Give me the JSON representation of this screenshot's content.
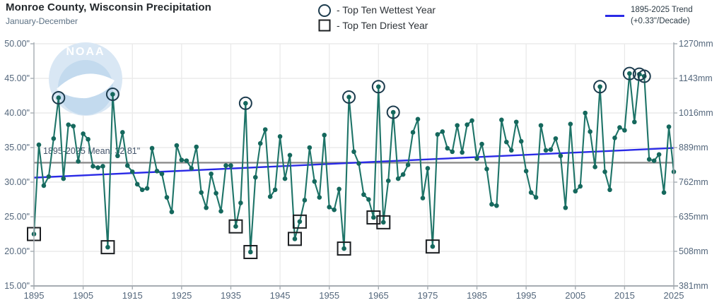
{
  "header": {
    "title": "Monroe County, Wisconsin Precipitation",
    "subtitle": "January-December"
  },
  "legend": {
    "wettest": "- Top Ten Wettest Year",
    "driest": "- Top Ten Driest Year",
    "trend_line1": "1895-2025 Trend",
    "trend_line2": "(+0.33\"/Decade)"
  },
  "watermark": {
    "logo_text": "NOAA"
  },
  "chart_data": {
    "type": "line",
    "title": "Monroe County, Wisconsin Precipitation",
    "subtitle": "January-December",
    "xlim": [
      1895,
      2025
    ],
    "ylim_inches": [
      15,
      50
    ],
    "ylim_mm": [
      381,
      1270
    ],
    "grid": true,
    "start_year": 1895,
    "series": [
      {
        "name": "precipitation",
        "values": [
          22.5,
          35.4,
          29.5,
          30.8,
          36.3,
          42.2,
          30.5,
          38.3,
          38.1,
          33.0,
          37.0,
          36.2,
          32.3,
          32.1,
          32.3,
          20.6,
          42.7,
          33.8,
          37.2,
          32.4,
          31.5,
          29.7,
          28.9,
          29.1,
          34.9,
          31.6,
          31.2,
          27.8,
          25.7,
          35.3,
          33.2,
          33.1,
          32.0,
          35.1,
          28.5,
          26.3,
          31.2,
          28.4,
          25.8,
          32.4,
          32.4,
          23.6,
          27.0,
          41.4,
          19.9,
          30.7,
          35.6,
          37.6,
          27.9,
          28.9,
          36.6,
          30.5,
          33.9,
          21.8,
          24.3,
          27.4,
          35.0,
          30.1,
          27.8,
          36.8,
          26.4,
          26.0,
          29.0,
          20.4,
          42.3,
          34.4,
          32.7,
          28.2,
          27.5,
          24.9,
          43.8,
          24.2,
          30.2,
          40.1,
          30.5,
          31.1,
          32.5,
          37.2,
          39.1,
          27.7,
          32.0,
          20.7,
          36.9,
          37.3,
          34.9,
          34.4,
          38.2,
          34.3,
          38.3,
          38.9,
          33.4,
          35.5,
          31.9,
          26.8,
          26.6,
          39.0,
          35.8,
          34.6,
          38.7,
          35.9,
          31.6,
          28.5,
          27.8,
          38.2,
          34.6,
          34.7,
          36.3,
          33.8,
          26.3,
          38.4,
          28.7,
          29.4,
          40.0,
          37.3,
          32.2,
          43.8,
          31.5,
          28.9,
          36.4,
          37.9,
          37.5,
          45.7,
          38.7,
          45.6,
          45.3,
          33.3,
          33.1,
          34.0,
          28.5,
          38.0,
          31.5
        ]
      }
    ],
    "wettest_years": [
      1900,
      1911,
      1938,
      1959,
      1965,
      1968,
      2010,
      2016,
      2018,
      2019
    ],
    "driest_years": [
      1895,
      1910,
      1936,
      1939,
      1948,
      1949,
      1958,
      1964,
      1966,
      1976
    ],
    "mean": 32.81,
    "mean_label": "1895-2025 Mean: 32.81\"",
    "trend": {
      "start_year": 1895,
      "end_year": 2025,
      "start_value": 30.65,
      "end_value": 34.94,
      "rate_label": "+0.33\"/Decade"
    },
    "axes": {
      "left_tick_values": [
        50,
        45,
        40,
        35,
        30,
        25,
        20,
        15
      ],
      "left_tick_labels": [
        "50.00\"",
        "45.00\"",
        "40.00\"",
        "35.00\"",
        "30.00\"",
        "25.00\"",
        "20.00\"",
        "15.00\""
      ],
      "right_tick_labels": [
        "1270mm",
        "1143mm",
        "1016mm",
        "889mm",
        "762mm",
        "635mm",
        "508mm",
        "381mm"
      ],
      "x_tick_values": [
        1895,
        1905,
        1915,
        1925,
        1935,
        1945,
        1955,
        1965,
        1975,
        1985,
        1995,
        2005,
        2015,
        2025
      ],
      "x_tick_labels": [
        "1895",
        "1905",
        "1915",
        "1925",
        "1935",
        "1945",
        "1955",
        "1965",
        "1975",
        "1985",
        "1995",
        "2005",
        "2015",
        "2025"
      ],
      "legend_position": "top"
    },
    "colors": {
      "line": "#1e7468",
      "dot": "#15685d",
      "wettest_ring": "#1d3c4e",
      "driest_box": "#1c1f22",
      "trend": "#2a2ae6",
      "mean": "#8c8c8c",
      "grid": "#e8e8e8",
      "axis": "#a6adb3",
      "tick_text": "#54677c",
      "mean_text": "#43546a",
      "logo_circle": "#d9e7f4",
      "logo_inner": "#c3daee",
      "logo_white": "#ffffff"
    }
  }
}
